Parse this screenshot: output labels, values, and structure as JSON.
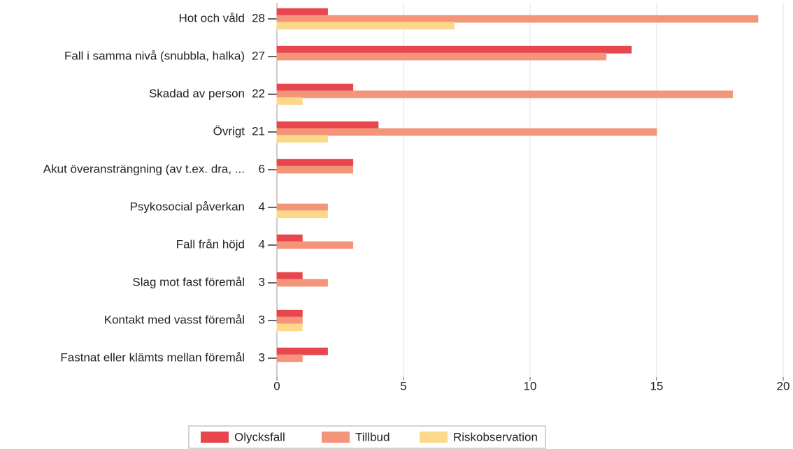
{
  "chart_data": {
    "type": "hbar",
    "categories": [
      "Hot och våld",
      "Fall i samma nivå (snubbla, halka)",
      "Skadad av person",
      "Övrigt",
      "Akut överansträngning (av t.ex. dra, ...",
      "Psykosocial påverkan",
      "Fall från höjd",
      "Slag mot fast föremål",
      "Kontakt med vasst föremål",
      "Fastnat eller klämts mellan föremål"
    ],
    "totals": [
      "28",
      "27",
      "22",
      "21",
      "6",
      "4",
      "4",
      "3",
      "3",
      "3"
    ],
    "series": [
      {
        "name": "Olycksfall",
        "color": "#e8464f",
        "values": [
          2,
          14,
          3,
          4,
          3,
          0,
          1,
          1,
          1,
          2
        ]
      },
      {
        "name": "Tillbud",
        "color": "#f4957a",
        "values": [
          19,
          13,
          18,
          15,
          3,
          2,
          3,
          2,
          1,
          1
        ]
      },
      {
        "name": "Riskobservation",
        "color": "#fcd98a",
        "values": [
          7,
          0,
          1,
          2,
          0,
          2,
          0,
          0,
          1,
          0
        ]
      }
    ],
    "xlim": [
      0,
      20
    ],
    "xticks": [
      0,
      5,
      10,
      15,
      20
    ],
    "grid": true,
    "legend": "bottom"
  }
}
